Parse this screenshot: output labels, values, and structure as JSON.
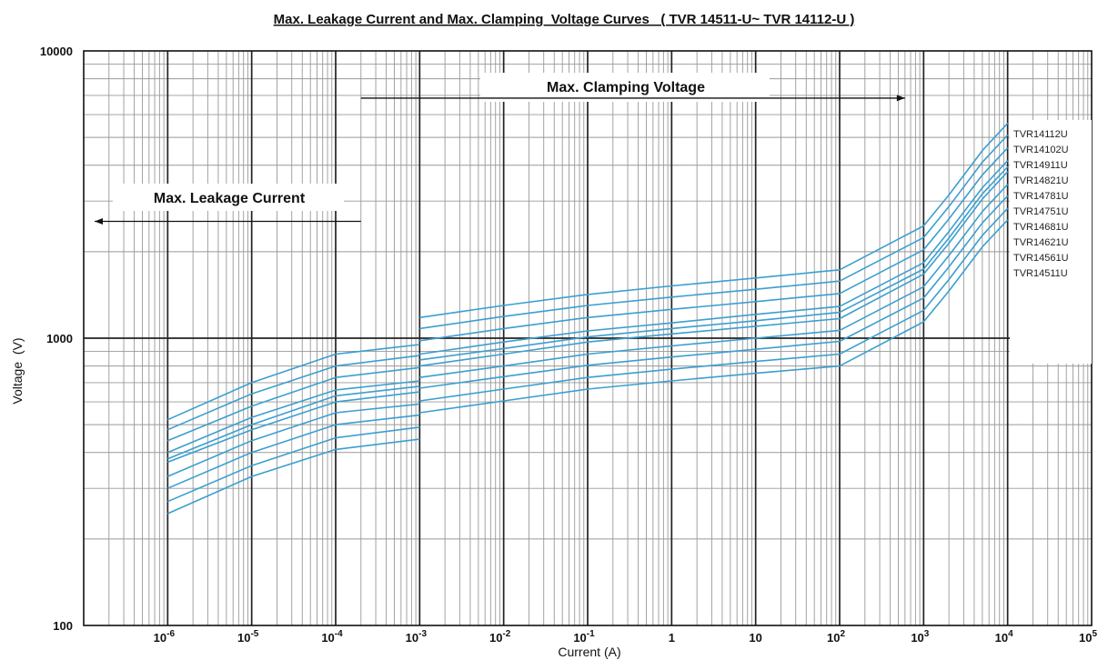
{
  "chart_data": {
    "type": "line",
    "title": "Max. Leakage Current and Max. Clamping  Voltage Curves   ( TVR 14511-U~ TVR 14112-U )",
    "xlabel": "Current (A)",
    "ylabel": "Voltage  (V)",
    "x_scale": "log",
    "y_scale": "log",
    "xlim": [
      1e-07,
      100000
    ],
    "ylim": [
      100,
      10000
    ],
    "x_ticks": [
      {
        "value": 1e-06,
        "base": "10",
        "exp": "-6"
      },
      {
        "value": 1e-05,
        "base": "10",
        "exp": "-5"
      },
      {
        "value": 0.0001,
        "base": "10",
        "exp": "-4"
      },
      {
        "value": 0.001,
        "base": "10",
        "exp": "-3"
      },
      {
        "value": 0.01,
        "base": "10",
        "exp": "-2"
      },
      {
        "value": 0.1,
        "base": "10",
        "exp": "-1"
      },
      {
        "value": 1,
        "base": "1",
        "exp": ""
      },
      {
        "value": 10,
        "base": "10",
        "exp": ""
      },
      {
        "value": 100,
        "base": "10",
        "exp": "2"
      },
      {
        "value": 1000,
        "base": "10",
        "exp": "3"
      },
      {
        "value": 10000,
        "base": "10",
        "exp": "4"
      },
      {
        "value": 100000,
        "base": "10",
        "exp": "5"
      }
    ],
    "y_ticks": [
      {
        "value": 100,
        "label": "100"
      },
      {
        "value": 1000,
        "label": "1000"
      },
      {
        "value": 10000,
        "label": "10000"
      }
    ],
    "grid": true,
    "annotations": [
      {
        "text": "Max. Leakage Current",
        "arrow": "left",
        "x_from": 0.0002,
        "x_to": 1e-07,
        "y": 2550
      },
      {
        "text": "Max. Clamping  Voltage",
        "arrow": "right",
        "x_from": 0.0002,
        "x_to": 600,
        "y": 6850
      }
    ],
    "leakage_x": [
      1e-06,
      1e-05,
      0.0001,
      0.001
    ],
    "clamping_x": [
      0.001,
      0.01,
      0.1,
      1,
      10,
      100,
      1000,
      2000,
      5000,
      10000
    ],
    "series": [
      {
        "name": "TVR14112U",
        "leakage": [
          520,
          700,
          880,
          950
        ],
        "clamping": [
          1180,
          1300,
          1420,
          1520,
          1620,
          1730,
          2460,
          3150,
          4500,
          5600
        ]
      },
      {
        "name": "TVR14102U",
        "leakage": [
          480,
          640,
          800,
          870
        ],
        "clamping": [
          1080,
          1190,
          1300,
          1390,
          1480,
          1580,
          2240,
          2870,
          4100,
          5100
        ]
      },
      {
        "name": "TVR14911U",
        "leakage": [
          440,
          580,
          730,
          790
        ],
        "clamping": [
          980,
          1080,
          1180,
          1260,
          1340,
          1430,
          2030,
          2600,
          3700,
          4600
        ]
      },
      {
        "name": "TVR14821U",
        "leakage": [
          400,
          530,
          660,
          710
        ],
        "clamping": [
          880,
          970,
          1060,
          1130,
          1210,
          1290,
          1830,
          2350,
          3340,
          4150
        ]
      },
      {
        "name": "TVR14781U",
        "leakage": [
          380,
          500,
          630,
          680
        ],
        "clamping": [
          840,
          920,
          1010,
          1080,
          1150,
          1230,
          1740,
          2230,
          3180,
          3950
        ]
      },
      {
        "name": "TVR14751U",
        "leakage": [
          370,
          480,
          600,
          650
        ],
        "clamping": [
          800,
          880,
          970,
          1035,
          1100,
          1170,
          1670,
          2140,
          3050,
          3800
        ]
      },
      {
        "name": "TVR14681U",
        "leakage": [
          330,
          440,
          550,
          590
        ],
        "clamping": [
          730,
          800,
          880,
          940,
          1000,
          1065,
          1510,
          1940,
          2760,
          3430
        ]
      },
      {
        "name": "TVR14621U",
        "leakage": [
          300,
          400,
          500,
          540
        ],
        "clamping": [
          670,
          735,
          805,
          860,
          915,
          975,
          1380,
          1770,
          2520,
          3130
        ]
      },
      {
        "name": "TVR14561U",
        "leakage": [
          270,
          360,
          450,
          490
        ],
        "clamping": [
          605,
          665,
          730,
          780,
          830,
          880,
          1250,
          1600,
          2280,
          2830
        ]
      },
      {
        "name": "TVR14511U",
        "leakage": [
          245,
          330,
          410,
          445
        ],
        "clamping": [
          550,
          605,
          665,
          710,
          755,
          800,
          1140,
          1460,
          2080,
          2580
        ]
      }
    ],
    "line_color": "#3a9fd0"
  }
}
